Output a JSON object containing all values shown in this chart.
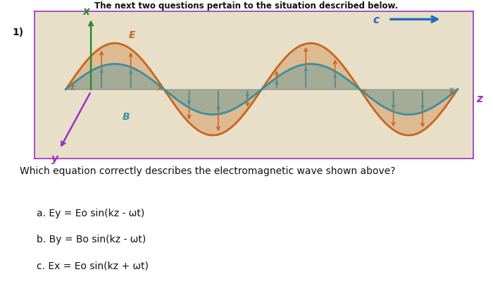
{
  "title_top": "The next two questions pertain to the situation described below.",
  "question_num": "1)",
  "question_text": "Which equation correctly describes the electromagnetic wave shown above?",
  "wave_bg_color": "#e8dfc8",
  "wave_orange_color": "#c8651a",
  "wave_teal_color": "#3a8fa0",
  "z_axis_color": "#9b30c8",
  "x_axis_color": "#2e8a2e",
  "y_axis_color": "#9b30c8",
  "c_arrow_color": "#2070c0",
  "box_border_color": "#9b30c8",
  "text_color": "#222222",
  "answer_color": "#222222"
}
